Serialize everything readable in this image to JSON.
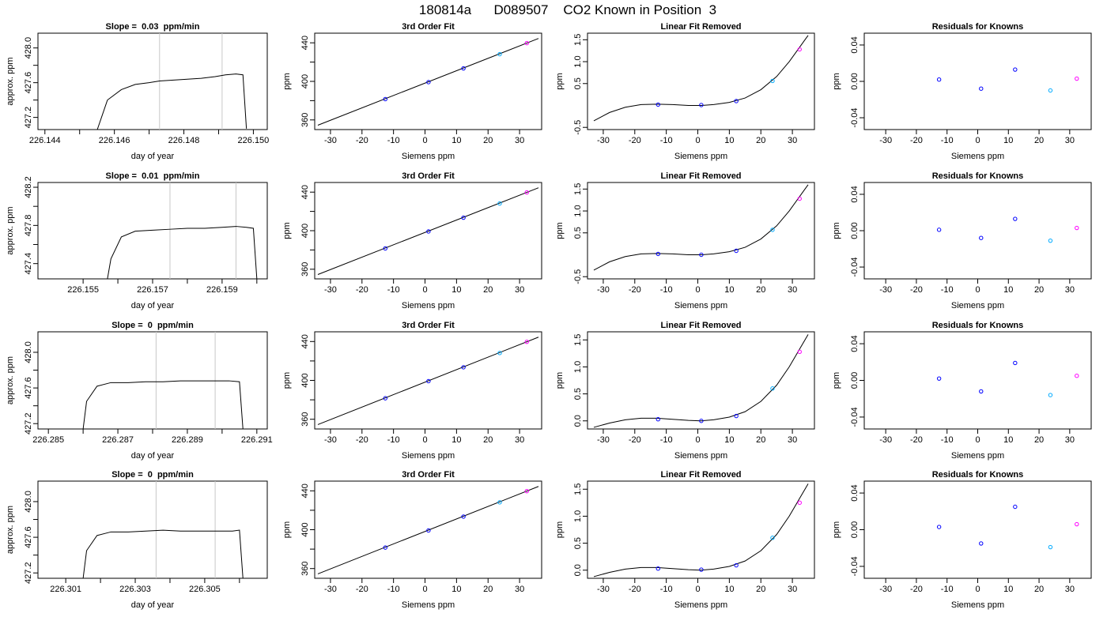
{
  "title": "180814a      D089507    CO2 Known in Position  3",
  "chart_data": [
    {
      "type": "line",
      "title": "Slope =  0.03  ppm/min",
      "xlabel": "day of year",
      "ylabel": "approx. ppm",
      "xlim": [
        226.1438,
        226.1504
      ],
      "ylim": [
        427.06,
        428.17
      ],
      "xticks": [
        226.144,
        226.145,
        226.146,
        226.147,
        226.148,
        226.149,
        226.15
      ],
      "xtick_labels": [
        "226.144",
        "",
        "226.146",
        "",
        "226.148",
        "",
        "226.150"
      ],
      "yticks": [
        427.2,
        427.4,
        427.6,
        427.8,
        428.0
      ],
      "ytick_labels": [
        "427.2",
        "",
        "427.6",
        "",
        "428.0"
      ],
      "vlines": [
        226.1473,
        226.1491
      ],
      "x": [
        226.1455,
        226.1458,
        226.1462,
        226.1466,
        226.147,
        226.1473,
        226.1477,
        226.1481,
        226.1485,
        226.1489,
        226.1492,
        226.1495,
        226.1497,
        226.1498
      ],
      "y": [
        427.05,
        427.4,
        427.52,
        427.58,
        427.6,
        427.62,
        427.63,
        427.64,
        427.65,
        427.67,
        427.69,
        427.7,
        427.69,
        427.07
      ]
    },
    {
      "type": "scatter",
      "title": "3rd Order Fit",
      "xlabel": "Siemens ppm",
      "ylabel": "ppm",
      "xlim": [
        -35,
        37
      ],
      "ylim": [
        350,
        450
      ],
      "xticks": [
        -30,
        -20,
        -10,
        0,
        10,
        20,
        30
      ],
      "yticks": [
        360,
        380,
        400,
        420,
        440
      ],
      "ytick_labels": [
        "360",
        "",
        "400",
        "",
        "440"
      ],
      "x": [
        -12.6,
        1.1,
        12.2,
        23.7,
        32.3
      ],
      "y": [
        381.6,
        399.2,
        413.5,
        428.2,
        439.7
      ],
      "curve_x": [
        -34,
        36
      ],
      "curve_y": [
        354.5,
        444.5
      ]
    },
    {
      "type": "scatter",
      "title": "Linear Fit Removed",
      "xlabel": "Siemens ppm",
      "ylabel": "ppm",
      "xlim": [
        -35,
        37
      ],
      "ylim": [
        -0.55,
        1.65
      ],
      "xticks": [
        -30,
        -20,
        -10,
        0,
        10,
        20,
        30
      ],
      "yticks": [
        -0.5,
        0.5,
        1.0,
        1.5
      ],
      "ytick_labels": [
        "-0.5",
        "0.5",
        "1.0",
        "1.5"
      ],
      "x": [
        -12.6,
        1.1,
        12.2,
        23.7,
        32.3
      ],
      "y": [
        0.02,
        0.01,
        0.1,
        0.56,
        1.28
      ],
      "curve_x": [
        -33,
        -28,
        -23,
        -18,
        -13,
        -8,
        -3,
        1,
        5,
        10,
        15,
        20,
        25,
        29,
        32,
        35
      ],
      "curve_y": [
        -0.35,
        -0.16,
        -0.04,
        0.02,
        0.03,
        0.02,
        0.0,
        0.0,
        0.02,
        0.07,
        0.17,
        0.36,
        0.66,
        1.0,
        1.3,
        1.6
      ]
    },
    {
      "type": "scatter",
      "title": "Residuals for Knowns",
      "xlabel": "Siemens ppm",
      "ylabel": "ppm",
      "xlim": [
        -37,
        37
      ],
      "ylim": [
        -0.053,
        0.053
      ],
      "xticks": [
        -30,
        -20,
        -10,
        0,
        10,
        20,
        30
      ],
      "yticks": [
        -0.04,
        0.0,
        0.04
      ],
      "ytick_labels": [
        "-0.04",
        "0.00",
        "0.04"
      ],
      "x": [
        -12.6,
        1.1,
        12.2,
        23.7,
        32.3
      ],
      "y": [
        0.002,
        -0.008,
        0.013,
        -0.01,
        0.003
      ]
    },
    {
      "type": "line",
      "title": "Slope =  0.01  ppm/min",
      "xlabel": "day of year",
      "ylabel": "approx. ppm",
      "xlim": [
        226.1537,
        226.1603
      ],
      "ylim": [
        427.24,
        428.25
      ],
      "xticks": [
        226.155,
        226.156,
        226.157,
        226.158,
        226.159,
        226.16
      ],
      "xtick_labels": [
        "226.155",
        "",
        "226.157",
        "",
        "226.159",
        ""
      ],
      "yticks": [
        427.4,
        427.6,
        427.8,
        428.0,
        428.2
      ],
      "ytick_labels": [
        "427.4",
        "",
        "427.8",
        "",
        "428.2"
      ],
      "vlines": [
        226.1575,
        226.1594
      ],
      "x": [
        226.1557,
        226.1558,
        226.1561,
        226.1565,
        226.157,
        226.1575,
        226.158,
        226.1585,
        226.159,
        226.1594,
        226.1597,
        226.1599,
        226.16
      ],
      "y": [
        427.24,
        427.45,
        427.68,
        427.74,
        427.75,
        427.76,
        427.77,
        427.77,
        427.78,
        427.79,
        427.78,
        427.77,
        427.24
      ]
    },
    {
      "type": "scatter",
      "title": "3rd Order Fit",
      "xlabel": "Siemens ppm",
      "ylabel": "ppm",
      "xlim": [
        -35,
        37
      ],
      "ylim": [
        350,
        450
      ],
      "xticks": [
        -30,
        -20,
        -10,
        0,
        10,
        20,
        30
      ],
      "yticks": [
        360,
        380,
        400,
        420,
        440
      ],
      "ytick_labels": [
        "360",
        "",
        "400",
        "",
        "440"
      ],
      "x": [
        -12.6,
        1.1,
        12.2,
        23.7,
        32.3
      ],
      "y": [
        381.6,
        399.2,
        413.5,
        428.2,
        439.7
      ],
      "curve_x": [
        -34,
        36
      ],
      "curve_y": [
        354.5,
        444.5
      ]
    },
    {
      "type": "scatter",
      "title": "Linear Fit Removed",
      "xlabel": "Siemens ppm",
      "ylabel": "ppm",
      "xlim": [
        -35,
        37
      ],
      "ylim": [
        -0.55,
        1.65
      ],
      "xticks": [
        -30,
        -20,
        -10,
        0,
        10,
        20,
        30
      ],
      "yticks": [
        -0.5,
        0.5,
        1.0,
        1.5
      ],
      "ytick_labels": [
        "-0.5",
        "0.5",
        "1.0",
        "1.5"
      ],
      "x": [
        -12.6,
        1.1,
        12.2,
        23.7,
        32.3
      ],
      "y": [
        0.02,
        0.0,
        0.09,
        0.57,
        1.28
      ],
      "curve_x": [
        -33,
        -28,
        -23,
        -18,
        -13,
        -8,
        -3,
        1,
        5,
        10,
        15,
        20,
        25,
        29,
        32,
        35
      ],
      "curve_y": [
        -0.35,
        -0.16,
        -0.04,
        0.02,
        0.03,
        0.02,
        0.0,
        0.0,
        0.02,
        0.07,
        0.17,
        0.36,
        0.66,
        1.0,
        1.3,
        1.6
      ]
    },
    {
      "type": "scatter",
      "title": "Residuals for Knowns",
      "xlabel": "Siemens ppm",
      "ylabel": "ppm",
      "xlim": [
        -37,
        37
      ],
      "ylim": [
        -0.053,
        0.053
      ],
      "xticks": [
        -30,
        -20,
        -10,
        0,
        10,
        20,
        30
      ],
      "yticks": [
        -0.04,
        0.0,
        0.04
      ],
      "ytick_labels": [
        "-0.04",
        "0.00",
        "0.04"
      ],
      "x": [
        -12.6,
        1.1,
        12.2,
        23.7,
        32.3
      ],
      "y": [
        0.001,
        -0.008,
        0.013,
        -0.011,
        0.003
      ]
    },
    {
      "type": "line",
      "title": "Slope =  0  ppm/min",
      "xlabel": "day of year",
      "ylabel": "approx. ppm",
      "xlim": [
        226.2847,
        226.2913
      ],
      "ylim": [
        427.14,
        428.23
      ],
      "xticks": [
        226.285,
        226.286,
        226.287,
        226.288,
        226.289,
        226.29,
        226.291
      ],
      "xtick_labels": [
        "226.285",
        "",
        "226.287",
        "",
        "226.289",
        "",
        "226.291"
      ],
      "yticks": [
        427.2,
        427.4,
        427.6,
        427.8,
        428.0
      ],
      "ytick_labels": [
        "427.2",
        "",
        "427.6",
        "",
        "428.0"
      ],
      "vlines": [
        226.2881,
        226.2898
      ],
      "x": [
        226.286,
        226.2861,
        226.2864,
        226.2868,
        226.2873,
        226.2878,
        226.2883,
        226.2888,
        226.2893,
        226.2898,
        226.2902,
        226.2905,
        226.2906
      ],
      "y": [
        427.14,
        427.45,
        427.62,
        427.66,
        427.66,
        427.67,
        427.67,
        427.68,
        427.68,
        427.68,
        427.68,
        427.67,
        427.14
      ]
    },
    {
      "type": "scatter",
      "title": "3rd Order Fit",
      "xlabel": "Siemens ppm",
      "ylabel": "ppm",
      "xlim": [
        -35,
        37
      ],
      "ylim": [
        350,
        450
      ],
      "xticks": [
        -30,
        -20,
        -10,
        0,
        10,
        20,
        30
      ],
      "yticks": [
        360,
        380,
        400,
        420,
        440
      ],
      "ytick_labels": [
        "360",
        "",
        "400",
        "",
        "440"
      ],
      "x": [
        -12.6,
        1.1,
        12.2,
        23.7,
        32.3
      ],
      "y": [
        381.6,
        399.2,
        413.5,
        428.2,
        439.7
      ],
      "curve_x": [
        -34,
        36
      ],
      "curve_y": [
        354.5,
        444.5
      ]
    },
    {
      "type": "scatter",
      "title": "Linear Fit Removed",
      "xlabel": "Siemens ppm",
      "ylabel": "ppm",
      "xlim": [
        -35,
        37
      ],
      "ylim": [
        -0.15,
        1.65
      ],
      "xticks": [
        -30,
        -20,
        -10,
        0,
        10,
        20,
        30
      ],
      "yticks": [
        0.0,
        0.5,
        1.0,
        1.5
      ],
      "ytick_labels": [
        "0.0",
        "0.5",
        "1.0",
        "1.5"
      ],
      "x": [
        -12.6,
        1.1,
        12.2,
        23.7,
        32.3
      ],
      "y": [
        0.03,
        0.0,
        0.09,
        0.6,
        1.28
      ],
      "curve_x": [
        -33,
        -28,
        -23,
        -18,
        -13,
        -8,
        -3,
        1,
        5,
        10,
        15,
        20,
        25,
        29,
        32,
        35
      ],
      "curve_y": [
        -0.12,
        -0.04,
        0.02,
        0.05,
        0.05,
        0.03,
        0.01,
        0.0,
        0.02,
        0.07,
        0.17,
        0.36,
        0.66,
        1.0,
        1.3,
        1.6
      ]
    },
    {
      "type": "scatter",
      "title": "Residuals for Knowns",
      "xlabel": "Siemens ppm",
      "ylabel": "ppm",
      "xlim": [
        -37,
        37
      ],
      "ylim": [
        -0.053,
        0.053
      ],
      "xticks": [
        -30,
        -20,
        -10,
        0,
        10,
        20,
        30
      ],
      "yticks": [
        -0.04,
        0.0,
        0.04
      ],
      "ytick_labels": [
        "-0.04",
        "0.00",
        "0.04"
      ],
      "x": [
        -12.6,
        1.1,
        12.2,
        23.7,
        32.3
      ],
      "y": [
        0.002,
        -0.012,
        0.019,
        -0.016,
        0.005
      ]
    },
    {
      "type": "line",
      "title": "Slope =  0  ppm/min",
      "xlabel": "day of year",
      "ylabel": "approx. ppm",
      "xlim": [
        226.3002,
        226.3068
      ],
      "ylim": [
        427.14,
        428.23
      ],
      "xticks": [
        226.301,
        226.302,
        226.303,
        226.304,
        226.305,
        226.306
      ],
      "xtick_labels": [
        "226.301",
        "",
        "226.303",
        "",
        "226.305",
        ""
      ],
      "yticks": [
        427.2,
        427.4,
        427.6,
        427.8,
        428.0
      ],
      "ytick_labels": [
        "427.2",
        "",
        "427.6",
        "",
        "428.0"
      ],
      "vlines": [
        226.3036,
        226.3053
      ],
      "x": [
        226.3015,
        226.3016,
        226.3019,
        226.3023,
        226.3028,
        226.3033,
        226.3038,
        226.3043,
        226.3048,
        226.3053,
        226.3058,
        226.306,
        226.3061
      ],
      "y": [
        427.14,
        427.45,
        427.62,
        427.66,
        427.66,
        427.67,
        427.68,
        427.67,
        427.67,
        427.67,
        427.67,
        427.68,
        427.14
      ]
    },
    {
      "type": "scatter",
      "title": "3rd Order Fit",
      "xlabel": "Siemens ppm",
      "ylabel": "ppm",
      "xlim": [
        -35,
        37
      ],
      "ylim": [
        350,
        450
      ],
      "xticks": [
        -30,
        -20,
        -10,
        0,
        10,
        20,
        30
      ],
      "yticks": [
        360,
        380,
        400,
        420,
        440
      ],
      "ytick_labels": [
        "360",
        "",
        "400",
        "",
        "440"
      ],
      "x": [
        -12.6,
        1.1,
        12.2,
        23.7,
        32.3
      ],
      "y": [
        381.6,
        399.2,
        413.5,
        428.2,
        439.7
      ],
      "curve_x": [
        -34,
        36
      ],
      "curve_y": [
        354.5,
        444.5
      ]
    },
    {
      "type": "scatter",
      "title": "Linear Fit Removed",
      "xlabel": "Siemens ppm",
      "ylabel": "ppm",
      "xlim": [
        -35,
        37
      ],
      "ylim": [
        -0.15,
        1.65
      ],
      "xticks": [
        -30,
        -20,
        -10,
        0,
        10,
        20,
        30
      ],
      "yticks": [
        0.0,
        0.5,
        1.0,
        1.5
      ],
      "ytick_labels": [
        "0.0",
        "0.5",
        "1.0",
        "1.5"
      ],
      "x": [
        -12.6,
        1.1,
        12.2,
        23.7,
        32.3
      ],
      "y": [
        0.03,
        0.01,
        0.09,
        0.6,
        1.25
      ],
      "curve_x": [
        -33,
        -28,
        -23,
        -18,
        -13,
        -8,
        -3,
        1,
        5,
        10,
        15,
        20,
        25,
        29,
        32,
        35
      ],
      "curve_y": [
        -0.12,
        -0.04,
        0.02,
        0.05,
        0.05,
        0.03,
        0.01,
        0.0,
        0.02,
        0.07,
        0.17,
        0.36,
        0.66,
        1.0,
        1.3,
        1.6
      ]
    },
    {
      "type": "scatter",
      "title": "Residuals for Knowns",
      "xlabel": "Siemens ppm",
      "ylabel": "ppm",
      "xlim": [
        -37,
        37
      ],
      "ylim": [
        -0.053,
        0.053
      ],
      "xticks": [
        -30,
        -20,
        -10,
        0,
        10,
        20,
        30
      ],
      "yticks": [
        -0.04,
        0.0,
        0.04
      ],
      "ytick_labels": [
        "-0.04",
        "0.00",
        "0.04"
      ],
      "x": [
        -12.6,
        1.1,
        12.2,
        23.7,
        32.3
      ],
      "y": [
        0.003,
        -0.015,
        0.025,
        -0.019,
        0.006
      ]
    }
  ]
}
